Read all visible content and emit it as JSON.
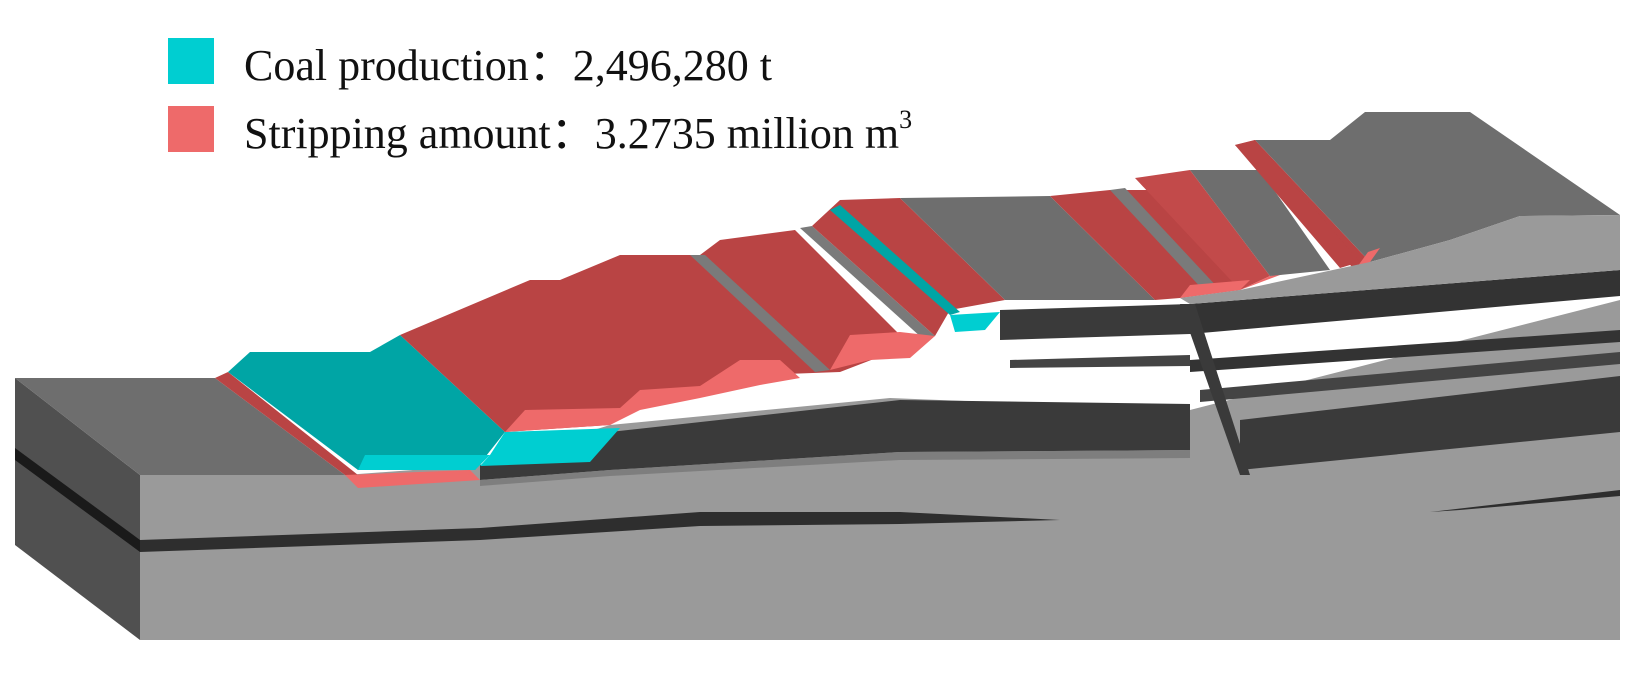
{
  "legend": {
    "coal": {
      "label": "Coal production：",
      "value": "2,496,280 t",
      "color": "#00CED1"
    },
    "stripping": {
      "label": "Stripping amount：",
      "value": "3.2735 million m",
      "superscript": "3",
      "color": "#EE6A6A"
    }
  },
  "colors": {
    "coal_top": "#00A5A5",
    "coal_light": "#00CED1",
    "strip_top": "#B94444",
    "strip_light": "#EE6A6A",
    "rock_top": "#6E6E6E",
    "rock_front": "#9A9A9A",
    "rock_side": "#505050",
    "seam": "#3A3A3A"
  }
}
